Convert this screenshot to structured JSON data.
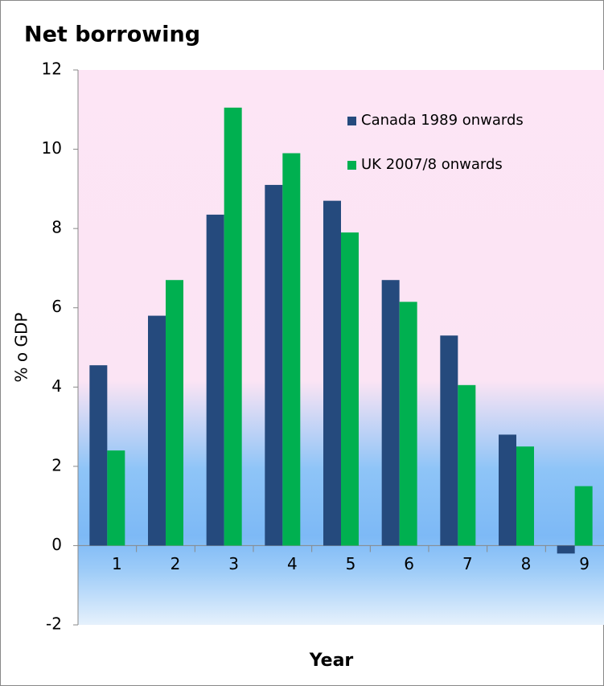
{
  "chart_data": {
    "type": "bar",
    "title": "Net borrowing",
    "x_label": "Year",
    "y_label": "% o GDP",
    "categories": [
      "1",
      "2",
      "3",
      "4",
      "5",
      "6",
      "7",
      "8",
      "9"
    ],
    "series": [
      {
        "name": "Canada 1989 onwards",
        "color": "#254a7d",
        "values": [
          4.55,
          5.8,
          8.35,
          9.1,
          8.7,
          6.7,
          5.3,
          2.8,
          -0.2
        ]
      },
      {
        "name": "UK 2007/8 onwards",
        "color": "#00b050",
        "values": [
          2.4,
          6.7,
          11.05,
          9.9,
          7.9,
          6.15,
          4.05,
          2.5,
          1.5
        ]
      }
    ],
    "ylim": [
      -2,
      12
    ],
    "yticks": [
      -2,
      0,
      2,
      4,
      6,
      8,
      10,
      12
    ],
    "legend": "upper right"
  }
}
